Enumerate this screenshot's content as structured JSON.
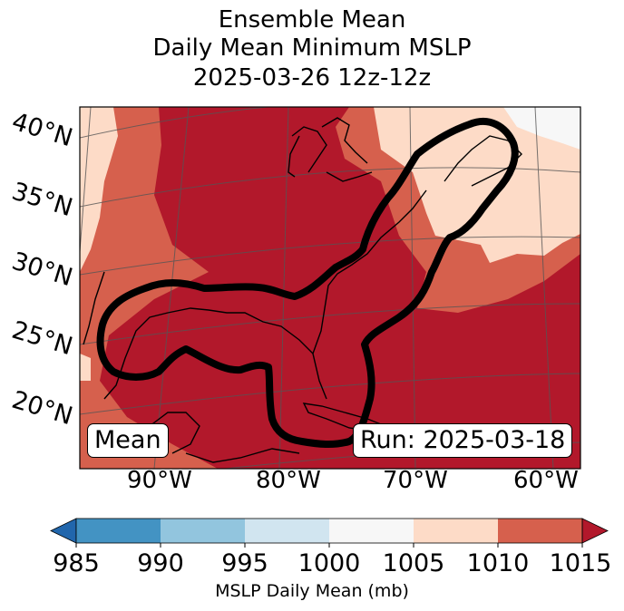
{
  "title": {
    "line1": "Ensemble Mean",
    "line2": "Daily Mean Minimum MSLP",
    "line3": "2025-03-26 12z-12z"
  },
  "map": {
    "latitude_labels": [
      "40°N",
      "35°N",
      "30°N",
      "25°N",
      "20°N"
    ],
    "longitude_labels": [
      "90°W",
      "80°W",
      "70°W",
      "60°W"
    ],
    "left_label": "Mean",
    "right_label": "Run: 2025-03-18",
    "fill_colors": {
      "1000-1005": "#f7f7f7",
      "1005-1010": "#fddbc7",
      "1010-1015": "#d6604d",
      "above-1015": "#b2182b"
    },
    "contour_color": "#000000",
    "coastline_color": "#000000",
    "gridline_color": "#555555"
  },
  "colorbar": {
    "label": "MSLP Daily Mean (mb)",
    "ticks": [
      "985",
      "990",
      "995",
      "1000",
      "1005",
      "1010",
      "1015"
    ],
    "under_color": "#2166ac",
    "over_color": "#b2182b",
    "segments": [
      {
        "range": "985-990",
        "color": "#4393c3"
      },
      {
        "range": "990-995",
        "color": "#92c5de"
      },
      {
        "range": "995-1000",
        "color": "#d1e5f0"
      },
      {
        "range": "1000-1005",
        "color": "#f7f7f7"
      },
      {
        "range": "1005-1010",
        "color": "#fddbc7"
      },
      {
        "range": "1010-1015",
        "color": "#d6604d"
      }
    ]
  }
}
